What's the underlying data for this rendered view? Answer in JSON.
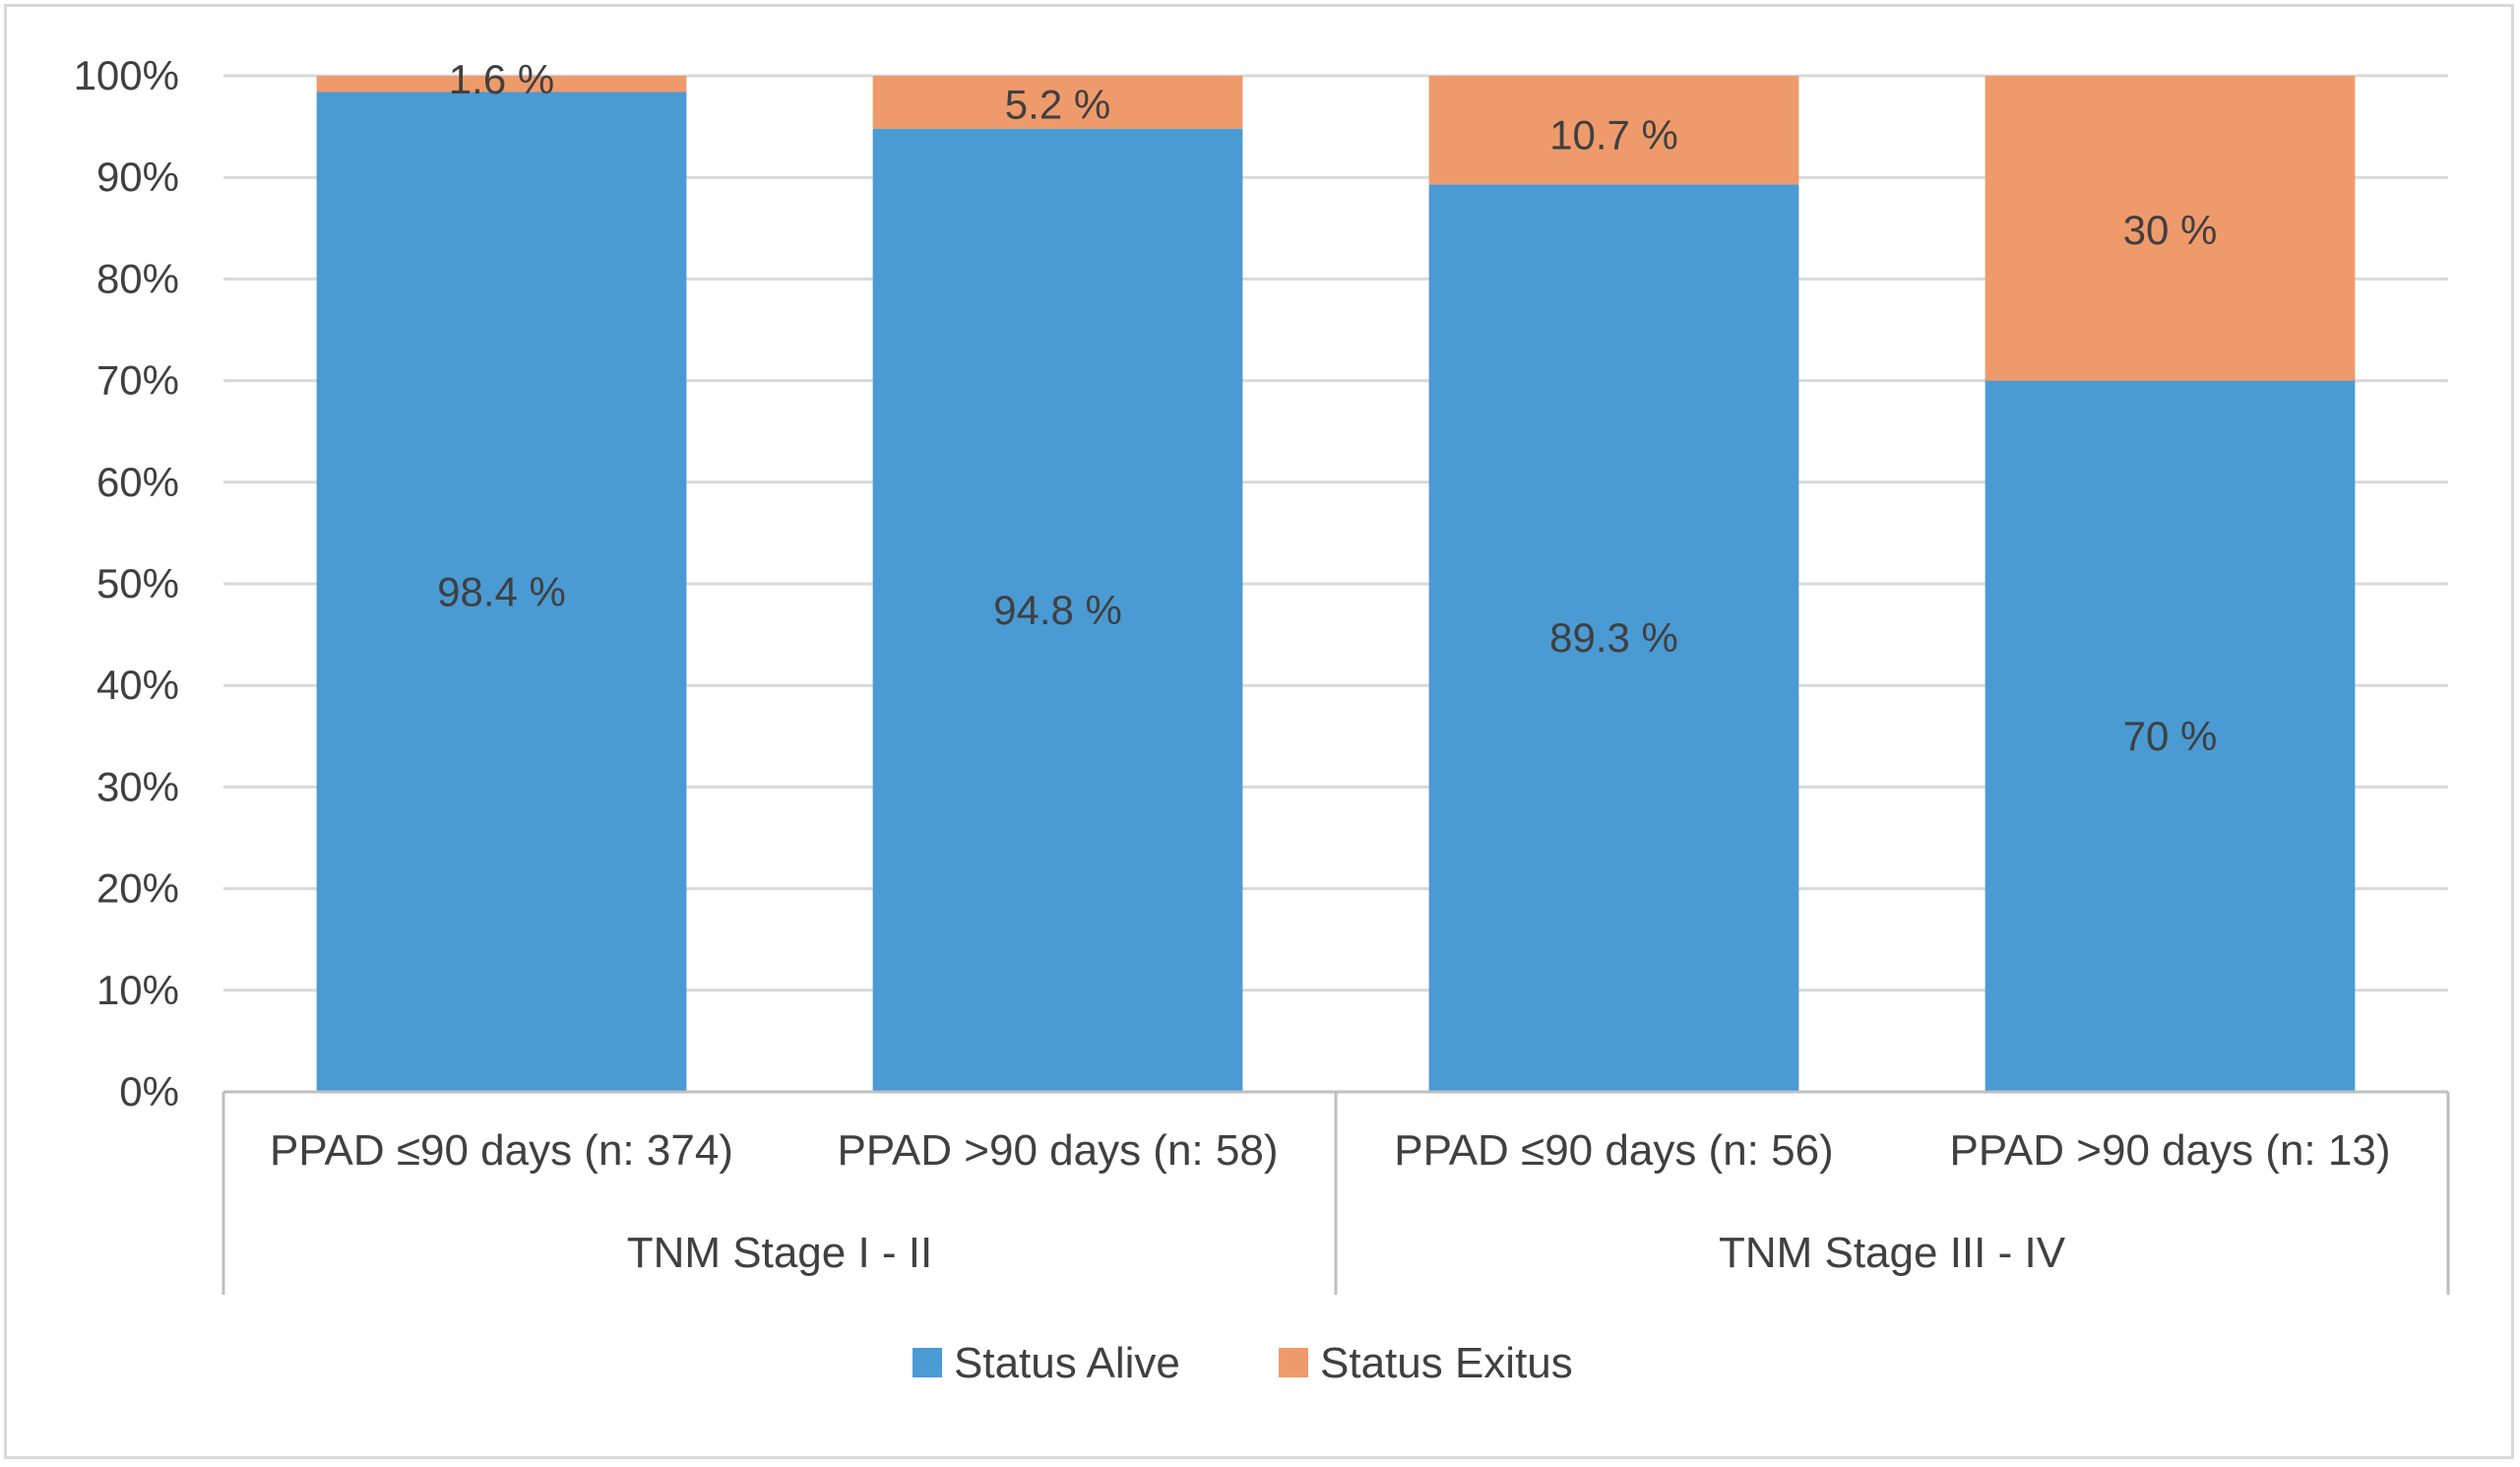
{
  "chart_data": {
    "type": "bar",
    "stacked": true,
    "percent_stacked": true,
    "categories": [
      "PPAD ≤90 days (n: 374)",
      "PPAD >90 days (n: 58)",
      "PPAD ≤90 days (n: 56)",
      "PPAD >90 days (n: 13)"
    ],
    "groups": [
      {
        "label": "TNM Stage I - II",
        "categories": [
          0,
          1
        ]
      },
      {
        "label": "TNM Stage III - IV",
        "categories": [
          2,
          3
        ]
      }
    ],
    "series": [
      {
        "name": "Status Alive",
        "color": "#4a9ad4",
        "values": [
          98.4,
          94.8,
          89.3,
          70
        ],
        "labels": [
          "98.4 %",
          "94.8 %",
          "89.3 %",
          "70 %"
        ]
      },
      {
        "name": "Status Exitus",
        "color": "#ef9a6b",
        "values": [
          1.6,
          5.2,
          10.7,
          30
        ],
        "labels": [
          "1.6 %",
          "5.2 %",
          "10.7 %",
          "30 %"
        ]
      }
    ],
    "y_ticks": [
      "0%",
      "10%",
      "20%",
      "30%",
      "40%",
      "50%",
      "60%",
      "70%",
      "80%",
      "90%",
      "100%"
    ],
    "ylim": [
      0,
      100
    ],
    "title": "",
    "xlabel": "",
    "ylabel": "",
    "grid": true,
    "legend_position": "bottom",
    "colors": {
      "gridline": "#d9d9d9",
      "axis": "#bfbfbf",
      "text": "#404040"
    }
  }
}
